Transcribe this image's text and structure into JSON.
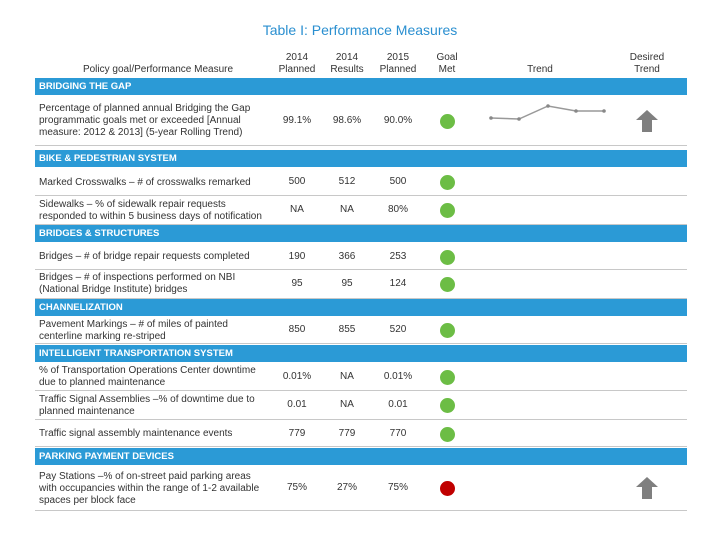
{
  "title": "Table I: Performance Measures",
  "table": {
    "header": [
      "Policy goal/Performance Measure",
      "2014 Planned",
      "2014 Results",
      "2015 Planned",
      "Goal Met",
      "Trend",
      "Desired Trend"
    ],
    "sections": [
      {
        "name": "BRIDGING THE GAP",
        "rows": [
          {
            "measure": "Percentage of planned annual Bridging the Gap programmatic goals met or exceeded [Annual measure: 2012 & 2013] (5-year Rolling Trend)",
            "planned_2014": "99.1%",
            "results_2014": "98.6%",
            "planned_2015": "90.0%",
            "goal_met_color": "#6cbd45",
            "desired_trend": "up"
          }
        ]
      },
      {
        "name": "BIKE & PEDESTRIAN SYSTEM",
        "rows": [
          {
            "measure": "Marked Crosswalks – # of crosswalks remarked",
            "planned_2014": "500",
            "results_2014": "512",
            "planned_2015": "500",
            "goal_met_color": "#6cbd45"
          },
          {
            "measure": "Sidewalks – % of sidewalk repair requests responded to within 5 business days of notification",
            "planned_2014": "NA",
            "results_2014": "NA",
            "planned_2015": "80%",
            "goal_met_color": "#6cbd45"
          }
        ]
      },
      {
        "name": "BRIDGES & STRUCTURES",
        "rows": [
          {
            "measure": "Bridges – # of bridge repair requests completed",
            "planned_2014": "190",
            "results_2014": "366",
            "planned_2015": "253",
            "goal_met_color": "#6cbd45"
          },
          {
            "measure": "Bridges – # of inspections performed on NBI (National Bridge Institute) bridges",
            "planned_2014": "95",
            "results_2014": "95",
            "planned_2015": "124",
            "goal_met_color": "#6cbd45"
          }
        ]
      },
      {
        "name": "CHANNELIZATION",
        "rows": [
          {
            "measure": "Pavement Markings – # of miles of painted centerline marking re-striped",
            "planned_2014": "850",
            "results_2014": "855",
            "planned_2015": "520",
            "goal_met_color": "#6cbd45"
          }
        ]
      },
      {
        "name": "INTELLIGENT TRANSPORTATION SYSTEM",
        "rows": [
          {
            "measure": "% of Transportation Operations Center downtime due to planned maintenance",
            "planned_2014": "0.01%",
            "results_2014": "NA",
            "planned_2015": "0.01%",
            "goal_met_color": "#6cbd45"
          },
          {
            "measure": "Traffic Signal Assemblies –% of downtime due to planned maintenance",
            "planned_2014": "0.01",
            "results_2014": "NA",
            "planned_2015": "0.01",
            "goal_met_color": "#6cbd45"
          },
          {
            "measure": "Traffic signal assembly maintenance events",
            "planned_2014": "779",
            "results_2014": "779",
            "planned_2015": "770",
            "goal_met_color": "#6cbd45"
          }
        ]
      },
      {
        "name": "PARKING PAYMENT DEVICES",
        "rows": [
          {
            "measure": "Pay Stations –% of on-street paid parking areas with occupancies within the range of 1-2 available spaces per block face",
            "planned_2014": "75%",
            "results_2014": "27%",
            "planned_2015": "75%",
            "goal_met_color": "#c00000",
            "desired_trend": "up"
          }
        ]
      }
    ]
  }
}
